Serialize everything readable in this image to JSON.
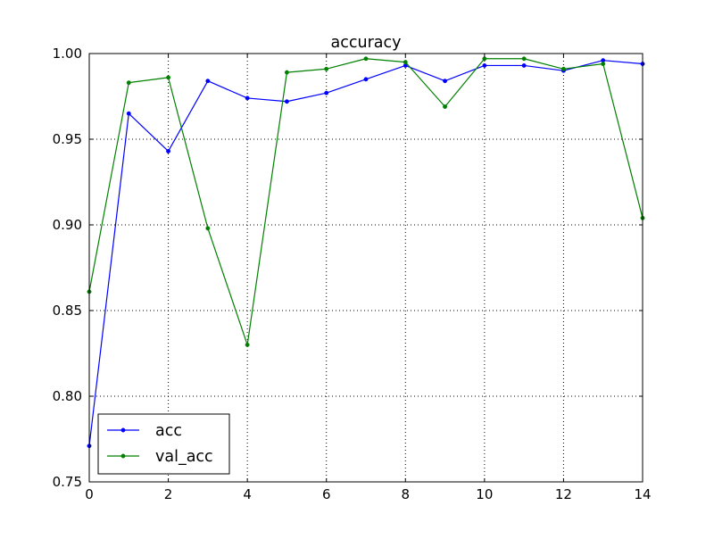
{
  "chart_data": {
    "type": "line",
    "title": "accuracy",
    "xlabel": "",
    "ylabel": "",
    "xlim": [
      0,
      14
    ],
    "ylim": [
      0.75,
      1.0
    ],
    "xticks": [
      0,
      2,
      4,
      6,
      8,
      10,
      12,
      14
    ],
    "xtick_labels": [
      "0",
      "2",
      "4",
      "6",
      "8",
      "10",
      "12",
      "14"
    ],
    "yticks": [
      0.75,
      0.8,
      0.85,
      0.9,
      0.95,
      1.0
    ],
    "ytick_labels": [
      "0.75",
      "0.80",
      "0.85",
      "0.90",
      "0.95",
      "1.00"
    ],
    "grid": true,
    "legend_position": "lower-left",
    "x": [
      0,
      1,
      2,
      3,
      4,
      5,
      6,
      7,
      8,
      9,
      10,
      11,
      12,
      13,
      14
    ],
    "series": [
      {
        "name": "acc",
        "color": "#0000ff",
        "values": [
          0.771,
          0.965,
          0.943,
          0.984,
          0.974,
          0.972,
          0.977,
          0.985,
          0.993,
          0.984,
          0.993,
          0.993,
          0.99,
          0.996,
          0.994
        ]
      },
      {
        "name": "val_acc",
        "color": "#008000",
        "values": [
          0.861,
          0.983,
          0.986,
          0.898,
          0.83,
          0.989,
          0.991,
          0.997,
          0.995,
          0.969,
          0.997,
          0.997,
          0.991,
          0.994,
          0.904
        ]
      }
    ]
  }
}
